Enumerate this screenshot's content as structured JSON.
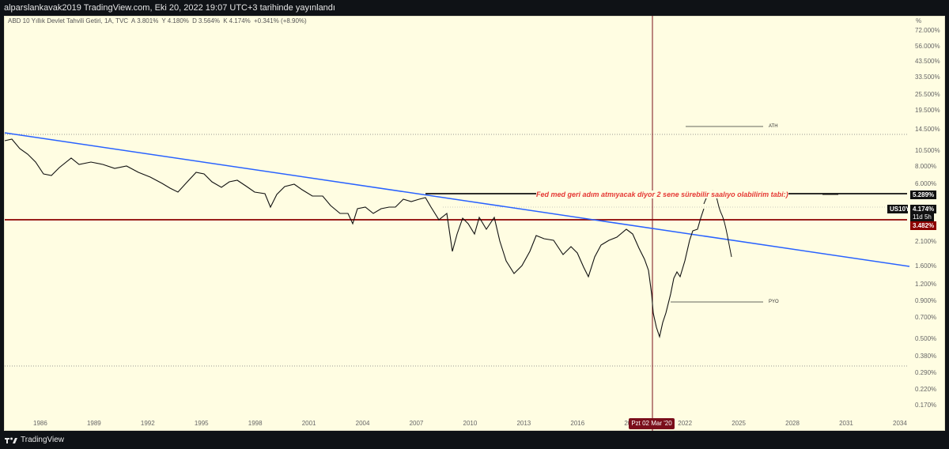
{
  "header": {
    "publisher_line": "alparslankavak2019 TradingView.com, Eki 20, 2022 19:07 UTC+3 tarihinde yayınlandı"
  },
  "legend": {
    "title": "ABD 10 Yıllık Devlet Tahvili Getiri, 1A, TVC",
    "open_label": "A",
    "open_value": "3.801%",
    "high_label": "Y",
    "high_value": "4.180%",
    "low_label": "D",
    "low_value": "3.564%",
    "close_label": "K",
    "close_value": "4.174%",
    "change": "+0.341% (+8.90%)"
  },
  "y_axis": {
    "unit": "%",
    "ticks": [
      "72.000%",
      "56.000%",
      "43.500%",
      "33.500%",
      "25.500%",
      "19.500%",
      "14.500%",
      "10.500%",
      "8.000%",
      "6.000%",
      "4.600%",
      "3.482%",
      "2.700%",
      "2.100%",
      "1.600%",
      "1.200%",
      "0.900%",
      "0.700%",
      "0.500%",
      "0.380%",
      "0.290%",
      "0.220%",
      "0.170%"
    ]
  },
  "x_axis": {
    "ticks": [
      "1986",
      "1989",
      "1992",
      "1995",
      "1998",
      "2001",
      "2004",
      "2007",
      "2010",
      "2013",
      "2016",
      "2019",
      "2022",
      "2025",
      "2028",
      "2031",
      "2034"
    ],
    "crosshair_date": "Pzt 02 Mar '20"
  },
  "price_tags": {
    "line_level": "5.289%",
    "symbol": "US10Y",
    "current": "4.174%",
    "countdown": "11d 5h",
    "support": "3.482%"
  },
  "annotations": {
    "main_text": "Fed med geri adım atmıyacak diyor  2 sene sürebilir saalıyo olabilirim tabi:)",
    "ath": "ATH",
    "pyo": "PYO"
  },
  "footer": {
    "brand": "TradingView"
  },
  "colors": {
    "background": "#fffde2",
    "trendline": "#2962ff",
    "support_line": "#8b0000",
    "crosshair": "#7a0e1b",
    "text_red": "#e53935"
  }
}
